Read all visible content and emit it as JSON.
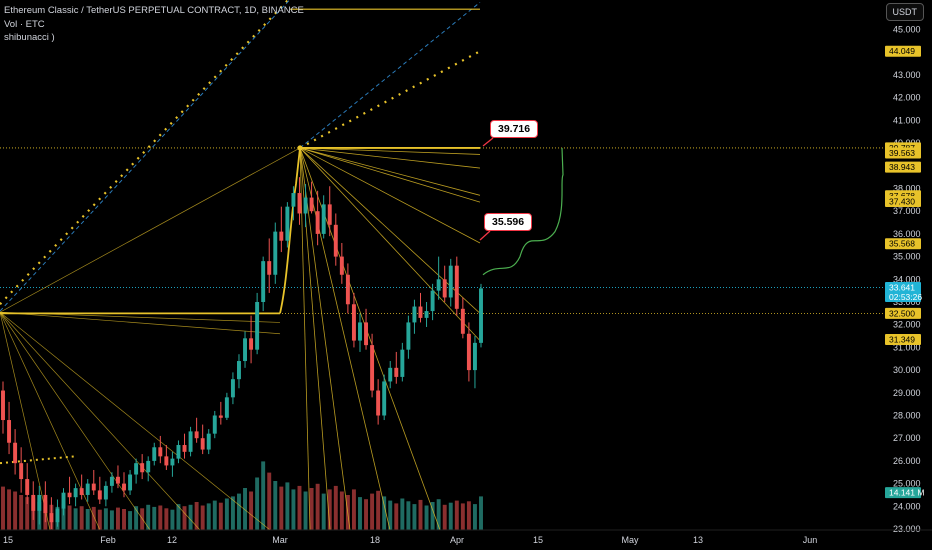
{
  "legend": {
    "symbol": "Ethereum Classic / TetherUS PERPETUAL CONTRACT, 1D, BINANCE",
    "volume": "Vol · ETC",
    "indicator": "shibunacci )"
  },
  "currency_button": "USDT",
  "callouts": {
    "upper": "39.716",
    "lower": "35.596"
  },
  "colors": {
    "up": "#26a69a",
    "down": "#ef5350",
    "up_vol": "#1f6b62",
    "down_vol": "#8a2f2f",
    "fib": "#e8c32a",
    "price_tag": "#21b4d6",
    "volume_tag": "#26a69a",
    "projection": "#4caf50"
  },
  "chart_data": {
    "type": "candlestick",
    "y_scale": {
      "min": 23.0,
      "max": 46.0
    },
    "price_ticks": [
      "45.000",
      "43.000",
      "42.000",
      "41.000",
      "40.000",
      "39.000",
      "38.000",
      "37.000",
      "36.000",
      "35.000",
      "34.000",
      "33.000",
      "32.000",
      "31.000",
      "30.000",
      "29.000",
      "28.000",
      "27.000",
      "26.000",
      "25.000",
      "24.000",
      "23.000"
    ],
    "time_ticks": [
      "15",
      "Feb",
      "12",
      "Mar",
      "18",
      "Apr",
      "15",
      "May",
      "13",
      "Jun"
    ],
    "level_tags": [
      {
        "label": "44.049",
        "value": 44.049,
        "style": "yellow"
      },
      {
        "label": "39.787",
        "value": 39.787,
        "style": "yellow"
      },
      {
        "label": "39.563",
        "value": 39.563,
        "style": "yellow"
      },
      {
        "label": "38.943",
        "value": 38.943,
        "style": "yellow"
      },
      {
        "label": "37.678",
        "value": 37.678,
        "style": "yellow"
      },
      {
        "label": "37.430",
        "value": 37.43,
        "style": "yellow"
      },
      {
        "label": "35.568",
        "value": 35.568,
        "style": "yellow"
      },
      {
        "label": "33.641",
        "value": 33.641,
        "style": "price",
        "countdown": "02:53:26"
      },
      {
        "label": "32.500",
        "value": 32.5,
        "style": "yellow"
      },
      {
        "label": "31.349",
        "value": 31.349,
        "style": "yellow"
      },
      {
        "label": "14.141 M",
        "value": 24.6,
        "style": "volume"
      }
    ],
    "candles": [
      [
        29.1,
        29.5,
        27.2,
        27.8
      ],
      [
        27.8,
        28.6,
        26.3,
        26.8
      ],
      [
        26.8,
        27.4,
        25.4,
        25.9
      ],
      [
        25.9,
        26.6,
        24.6,
        25.2
      ],
      [
        25.2,
        25.9,
        24.1,
        24.5
      ],
      [
        24.5,
        25.1,
        23.4,
        23.8
      ],
      [
        23.8,
        24.9,
        23.2,
        24.5
      ],
      [
        24.5,
        25.1,
        23.3,
        23.7
      ],
      [
        23.7,
        24.4,
        23.0,
        23.3
      ],
      [
        23.3,
        24.3,
        23.1,
        23.9
      ],
      [
        23.9,
        24.8,
        23.6,
        24.6
      ],
      [
        24.6,
        25.3,
        24.1,
        24.4
      ],
      [
        24.4,
        25.0,
        24.0,
        24.8
      ],
      [
        24.8,
        25.4,
        24.3,
        24.5
      ],
      [
        24.5,
        25.2,
        24.2,
        25.0
      ],
      [
        25.0,
        25.6,
        24.5,
        24.7
      ],
      [
        24.7,
        25.3,
        24.1,
        24.3
      ],
      [
        24.3,
        25.1,
        24.0,
        24.9
      ],
      [
        24.9,
        25.5,
        24.6,
        25.3
      ],
      [
        25.3,
        25.8,
        24.8,
        25.0
      ],
      [
        25.0,
        25.5,
        24.4,
        24.7
      ],
      [
        24.7,
        25.6,
        24.5,
        25.4
      ],
      [
        25.4,
        26.1,
        25.0,
        25.9
      ],
      [
        25.9,
        26.3,
        25.2,
        25.5
      ],
      [
        25.5,
        26.2,
        25.1,
        26.0
      ],
      [
        26.0,
        26.8,
        25.8,
        26.6
      ],
      [
        26.6,
        27.1,
        25.9,
        26.2
      ],
      [
        26.2,
        26.7,
        25.6,
        25.8
      ],
      [
        25.8,
        26.4,
        25.3,
        26.1
      ],
      [
        26.1,
        26.9,
        25.9,
        26.7
      ],
      [
        26.7,
        27.2,
        26.1,
        26.4
      ],
      [
        26.4,
        27.5,
        26.2,
        27.3
      ],
      [
        27.3,
        27.9,
        26.8,
        27.0
      ],
      [
        27.0,
        27.6,
        26.3,
        26.5
      ],
      [
        26.5,
        27.4,
        26.3,
        27.2
      ],
      [
        27.2,
        28.2,
        27.0,
        28.0
      ],
      [
        28.0,
        28.6,
        27.6,
        27.9
      ],
      [
        27.9,
        29.0,
        27.8,
        28.8
      ],
      [
        28.8,
        29.9,
        28.5,
        29.6
      ],
      [
        29.6,
        30.7,
        29.2,
        30.4
      ],
      [
        30.4,
        31.7,
        30.1,
        31.4
      ],
      [
        31.4,
        32.4,
        30.3,
        30.9
      ],
      [
        30.9,
        33.4,
        30.7,
        33.0
      ],
      [
        33.0,
        35.0,
        32.6,
        34.8
      ],
      [
        34.8,
        35.8,
        33.4,
        34.2
      ],
      [
        34.2,
        36.5,
        33.8,
        36.1
      ],
      [
        36.1,
        37.2,
        35.2,
        35.7
      ],
      [
        35.7,
        37.4,
        35.4,
        37.2
      ],
      [
        37.2,
        38.1,
        36.6,
        37.8
      ],
      [
        37.8,
        38.5,
        36.4,
        36.9
      ],
      [
        36.9,
        38.2,
        36.3,
        37.6
      ],
      [
        37.6,
        38.3,
        36.9,
        37.0
      ],
      [
        37.0,
        37.9,
        35.5,
        36.0
      ],
      [
        36.0,
        37.7,
        35.8,
        37.3
      ],
      [
        37.3,
        38.1,
        35.9,
        36.4
      ],
      [
        36.4,
        36.9,
        34.6,
        35.0
      ],
      [
        35.0,
        35.6,
        33.8,
        34.2
      ],
      [
        34.2,
        34.7,
        32.5,
        32.9
      ],
      [
        32.9,
        33.4,
        31.0,
        31.3
      ],
      [
        31.3,
        32.5,
        30.8,
        32.1
      ],
      [
        32.1,
        32.7,
        30.9,
        31.1
      ],
      [
        31.1,
        31.6,
        28.8,
        29.1
      ],
      [
        29.1,
        29.6,
        27.6,
        28.0
      ],
      [
        28.0,
        29.8,
        27.8,
        29.5
      ],
      [
        29.5,
        30.4,
        29.2,
        30.1
      ],
      [
        30.1,
        30.8,
        29.4,
        29.7
      ],
      [
        29.7,
        31.2,
        29.5,
        30.9
      ],
      [
        30.9,
        32.4,
        30.5,
        32.1
      ],
      [
        32.1,
        33.1,
        31.6,
        32.8
      ],
      [
        32.8,
        33.4,
        32.1,
        32.3
      ],
      [
        32.3,
        33.0,
        31.9,
        32.6
      ],
      [
        32.6,
        33.8,
        32.2,
        33.5
      ],
      [
        33.5,
        35.0,
        33.1,
        34.0
      ],
      [
        34.0,
        34.6,
        33.0,
        33.2
      ],
      [
        33.2,
        34.9,
        32.8,
        34.6
      ],
      [
        34.6,
        35.0,
        32.4,
        32.7
      ],
      [
        32.7,
        33.2,
        31.4,
        31.6
      ],
      [
        31.6,
        32.1,
        29.5,
        30.0
      ],
      [
        30.0,
        31.5,
        29.2,
        31.2
      ],
      [
        31.2,
        33.8,
        31.0,
        33.6
      ]
    ],
    "volumes": [
      0.62,
      0.58,
      0.55,
      0.5,
      0.47,
      0.45,
      0.4,
      0.42,
      0.36,
      0.33,
      0.38,
      0.35,
      0.31,
      0.34,
      0.3,
      0.33,
      0.29,
      0.31,
      0.28,
      0.32,
      0.3,
      0.27,
      0.34,
      0.31,
      0.36,
      0.33,
      0.35,
      0.31,
      0.29,
      0.37,
      0.34,
      0.36,
      0.4,
      0.35,
      0.38,
      0.42,
      0.39,
      0.45,
      0.48,
      0.52,
      0.6,
      0.55,
      0.75,
      0.98,
      0.82,
      0.7,
      0.62,
      0.68,
      0.58,
      0.63,
      0.55,
      0.6,
      0.66,
      0.52,
      0.58,
      0.63,
      0.55,
      0.5,
      0.58,
      0.47,
      0.44,
      0.52,
      0.56,
      0.48,
      0.42,
      0.38,
      0.45,
      0.41,
      0.37,
      0.43,
      0.35,
      0.4,
      0.44,
      0.36,
      0.39,
      0.42,
      0.38,
      0.41,
      0.37,
      0.48
    ]
  }
}
